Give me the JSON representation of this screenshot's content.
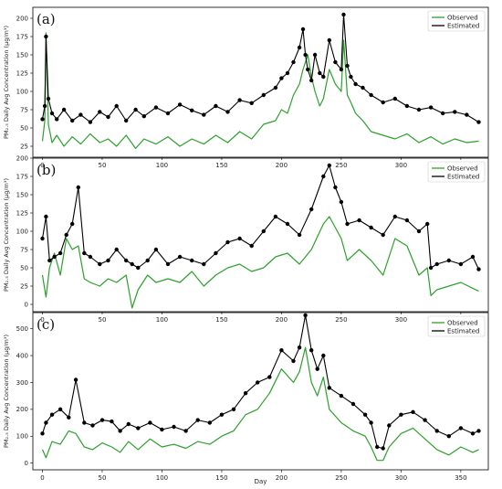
{
  "figure": {
    "x_label": "Day",
    "legend": {
      "observed": "Observed",
      "estimated": "Estimated"
    },
    "colors": {
      "observed": "#2ca02c",
      "estimated": "#000000"
    }
  },
  "chart_data": [
    {
      "type": "line",
      "panel_label": "(a)",
      "ylabel": "PM₂.₅ Daily Avg Concentration (µg/m³)",
      "xlim": [
        -8,
        373
      ],
      "ylim": [
        10,
        215
      ],
      "x_ticks": [
        0,
        50,
        100,
        150,
        200,
        250,
        300,
        350
      ],
      "y_ticks": [
        25,
        50,
        75,
        100,
        125,
        150,
        175,
        200
      ],
      "series": [
        {
          "name": "Observed",
          "key": "observed",
          "x": [
            0,
            2,
            3,
            5,
            8,
            12,
            18,
            25,
            32,
            40,
            48,
            55,
            62,
            70,
            78,
            85,
            95,
            105,
            115,
            125,
            135,
            145,
            155,
            165,
            175,
            185,
            195,
            200,
            205,
            210,
            215,
            218,
            220,
            222,
            225,
            228,
            232,
            235,
            240,
            245,
            250,
            252,
            255,
            258,
            262,
            268,
            275,
            285,
            295,
            305,
            315,
            325,
            335,
            345,
            355,
            365
          ],
          "y": [
            32,
            60,
            180,
            55,
            30,
            40,
            25,
            38,
            28,
            42,
            30,
            35,
            25,
            40,
            22,
            35,
            28,
            38,
            25,
            35,
            28,
            40,
            30,
            45,
            35,
            55,
            60,
            75,
            70,
            95,
            110,
            130,
            140,
            150,
            120,
            100,
            80,
            90,
            130,
            110,
            100,
            170,
            95,
            85,
            70,
            60,
            45,
            40,
            35,
            42,
            30,
            38,
            28,
            35,
            30,
            32
          ]
        },
        {
          "name": "Estimated",
          "key": "estimated",
          "x": [
            0,
            2,
            3,
            5,
            8,
            12,
            18,
            25,
            32,
            40,
            48,
            55,
            62,
            70,
            78,
            85,
            95,
            105,
            115,
            125,
            135,
            145,
            155,
            165,
            175,
            185,
            195,
            200,
            205,
            210,
            215,
            218,
            220,
            222,
            225,
            228,
            232,
            235,
            240,
            245,
            250,
            252,
            255,
            258,
            262,
            268,
            275,
            285,
            295,
            305,
            315,
            325,
            335,
            345,
            355,
            365
          ],
          "y": [
            62,
            80,
            175,
            90,
            70,
            62,
            75,
            60,
            68,
            58,
            72,
            65,
            80,
            60,
            75,
            66,
            78,
            70,
            82,
            74,
            68,
            80,
            72,
            88,
            84,
            95,
            105,
            118,
            125,
            140,
            160,
            185,
            150,
            130,
            115,
            150,
            125,
            120,
            170,
            140,
            130,
            205,
            135,
            120,
            110,
            105,
            95,
            85,
            90,
            80,
            75,
            78,
            70,
            72,
            68,
            58
          ]
        }
      ]
    },
    {
      "type": "line",
      "panel_label": "(b)",
      "ylabel": "PM₂.₅ Daily Avg Concentration (µg/m³)",
      "xlim": [
        -8,
        373
      ],
      "ylim": [
        -10,
        200
      ],
      "x_ticks": [
        0,
        50,
        100,
        150,
        200,
        250,
        300,
        350
      ],
      "y_ticks": [
        0,
        25,
        50,
        75,
        100,
        125,
        150,
        175,
        200
      ],
      "series": [
        {
          "name": "Observed",
          "key": "observed",
          "x": [
            0,
            3,
            6,
            10,
            15,
            20,
            25,
            30,
            35,
            40,
            48,
            55,
            62,
            70,
            75,
            80,
            88,
            95,
            105,
            115,
            125,
            135,
            145,
            155,
            165,
            175,
            185,
            195,
            205,
            215,
            225,
            235,
            240,
            245,
            250,
            255,
            265,
            275,
            285,
            295,
            305,
            315,
            322,
            325,
            330,
            340,
            350,
            360,
            365
          ],
          "y": [
            40,
            10,
            50,
            70,
            40,
            90,
            75,
            80,
            35,
            30,
            25,
            35,
            30,
            40,
            -5,
            20,
            40,
            30,
            35,
            30,
            45,
            25,
            40,
            50,
            55,
            45,
            50,
            65,
            70,
            55,
            75,
            110,
            120,
            105,
            90,
            60,
            75,
            60,
            40,
            90,
            80,
            40,
            50,
            12,
            20,
            25,
            30,
            22,
            18
          ]
        },
        {
          "name": "Estimated",
          "key": "estimated",
          "x": [
            0,
            3,
            6,
            10,
            15,
            20,
            25,
            30,
            35,
            40,
            48,
            55,
            62,
            70,
            75,
            80,
            88,
            95,
            105,
            115,
            125,
            135,
            145,
            155,
            165,
            175,
            185,
            195,
            205,
            215,
            225,
            235,
            240,
            245,
            250,
            255,
            265,
            275,
            285,
            295,
            305,
            315,
            322,
            325,
            330,
            340,
            350,
            360,
            365
          ],
          "y": [
            90,
            120,
            60,
            65,
            70,
            95,
            110,
            160,
            70,
            65,
            55,
            60,
            75,
            60,
            55,
            50,
            60,
            75,
            55,
            65,
            60,
            55,
            70,
            85,
            90,
            80,
            100,
            120,
            110,
            95,
            130,
            175,
            190,
            160,
            140,
            110,
            115,
            105,
            95,
            120,
            115,
            100,
            110,
            50,
            55,
            60,
            55,
            65,
            48
          ]
        }
      ]
    },
    {
      "type": "line",
      "panel_label": "(c)",
      "ylabel": "PM₂.₅ Daily Avg Concentration (µg/m³)",
      "xlim": [
        -8,
        373
      ],
      "ylim": [
        -25,
        560
      ],
      "x_ticks": [
        0,
        50,
        100,
        150,
        200,
        250,
        300,
        350
      ],
      "y_ticks": [
        0,
        100,
        200,
        300,
        400,
        500
      ],
      "series": [
        {
          "name": "Observed",
          "key": "observed",
          "x": [
            0,
            3,
            8,
            15,
            22,
            28,
            35,
            42,
            50,
            58,
            65,
            72,
            80,
            90,
            100,
            110,
            120,
            130,
            140,
            150,
            160,
            170,
            180,
            190,
            200,
            210,
            215,
            220,
            225,
            230,
            235,
            240,
            250,
            260,
            270,
            275,
            280,
            285,
            290,
            300,
            310,
            320,
            330,
            340,
            350,
            360,
            365
          ],
          "y": [
            50,
            20,
            80,
            70,
            120,
            110,
            60,
            50,
            75,
            60,
            40,
            80,
            50,
            90,
            60,
            70,
            55,
            80,
            70,
            100,
            120,
            180,
            200,
            260,
            350,
            300,
            340,
            430,
            300,
            250,
            320,
            200,
            150,
            120,
            100,
            60,
            10,
            10,
            60,
            110,
            130,
            90,
            50,
            30,
            60,
            40,
            50
          ]
        },
        {
          "name": "Estimated",
          "key": "estimated",
          "x": [
            0,
            3,
            8,
            15,
            22,
            28,
            35,
            42,
            50,
            58,
            65,
            72,
            80,
            90,
            100,
            110,
            120,
            130,
            140,
            150,
            160,
            170,
            180,
            190,
            200,
            210,
            215,
            220,
            225,
            230,
            235,
            240,
            250,
            260,
            270,
            275,
            280,
            285,
            290,
            300,
            310,
            320,
            330,
            340,
            350,
            360,
            365
          ],
          "y": [
            110,
            150,
            180,
            200,
            170,
            310,
            150,
            140,
            160,
            155,
            120,
            145,
            130,
            150,
            125,
            135,
            120,
            160,
            150,
            180,
            200,
            260,
            300,
            320,
            420,
            380,
            430,
            550,
            420,
            350,
            400,
            280,
            250,
            220,
            180,
            150,
            60,
            55,
            140,
            180,
            190,
            160,
            120,
            100,
            130,
            110,
            120
          ]
        }
      ]
    }
  ]
}
